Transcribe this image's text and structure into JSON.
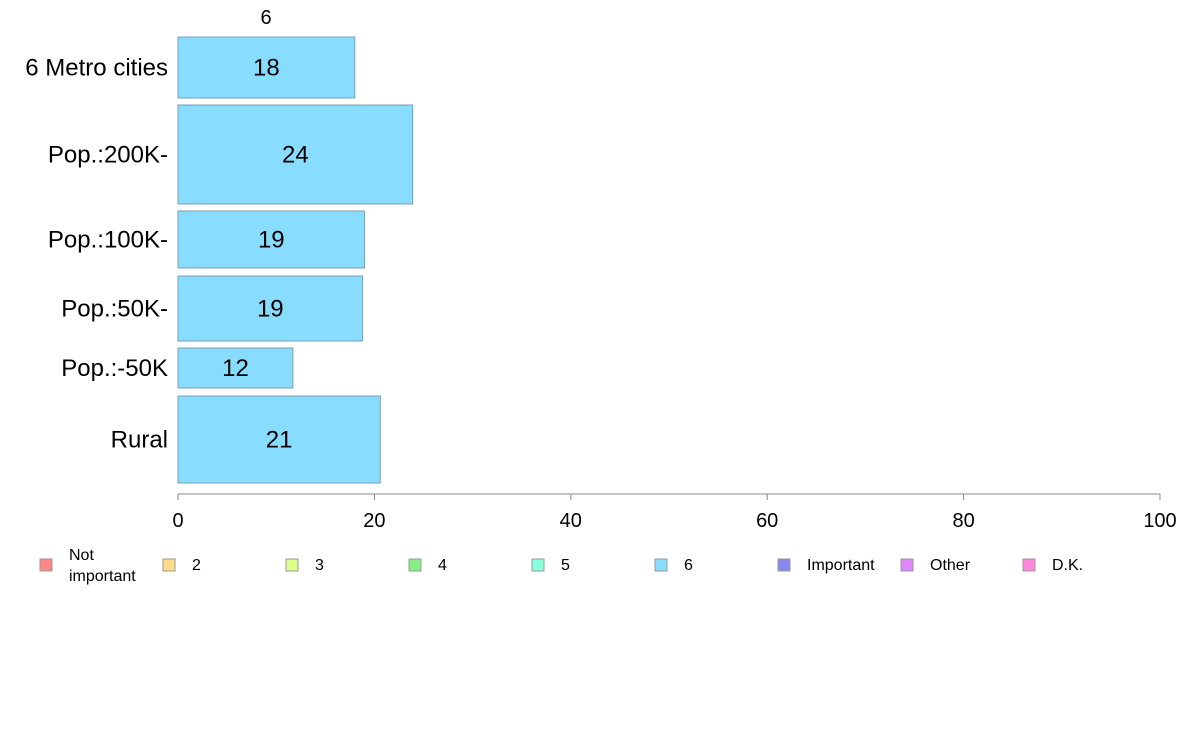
{
  "chart_data": {
    "type": "bar",
    "orientation": "horizontal",
    "series_header": "6",
    "categories": [
      "6 Metro cities",
      "Pop.:200K-",
      "Pop.:100K-",
      "Pop.:50K-",
      "Pop.:-50K",
      "Rural"
    ],
    "value_labels": [
      "18",
      "24",
      "19",
      "19",
      "12",
      "21"
    ],
    "series": [
      {
        "name": "6",
        "values": [
          18,
          23.9,
          19,
          18.8,
          11.7,
          20.6
        ],
        "color": "#88ddff"
      }
    ],
    "xlim": [
      0,
      100
    ],
    "xticks": [
      "0",
      "20",
      "40",
      "60",
      "80",
      "100"
    ],
    "grid": false,
    "legend_position": "bottom",
    "legend": [
      {
        "label": "Not important",
        "lines": [
          "Not",
          "important"
        ],
        "color": "#ff8888"
      },
      {
        "label": "2",
        "lines": [
          "2"
        ],
        "color": "#ffdd88"
      },
      {
        "label": "3",
        "lines": [
          "3"
        ],
        "color": "#ddff88"
      },
      {
        "label": "4",
        "lines": [
          "4"
        ],
        "color": "#88ee88"
      },
      {
        "label": "5",
        "lines": [
          "5"
        ],
        "color": "#88ffdd"
      },
      {
        "label": "6",
        "lines": [
          "6"
        ],
        "color": "#88ddff"
      },
      {
        "label": "Important",
        "lines": [
          "Important"
        ],
        "color": "#8888ee"
      },
      {
        "label": "Other",
        "lines": [
          "Other"
        ],
        "color": "#dd88ff"
      },
      {
        "label": "D.K.",
        "lines": [
          "D.K."
        ],
        "color": "#ff88dd"
      }
    ]
  }
}
